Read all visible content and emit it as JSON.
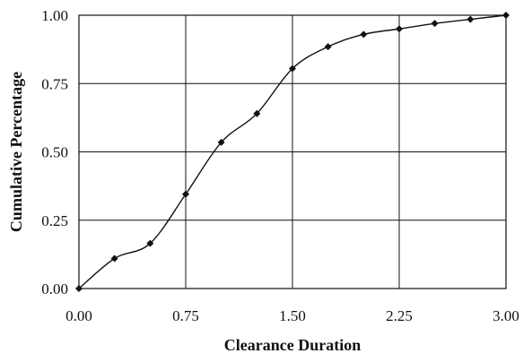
{
  "chart_data": {
    "type": "line",
    "xlabel": "Clearance Duration",
    "ylabel": "Cumulative Percentage",
    "xlim": [
      0,
      3
    ],
    "ylim": [
      0,
      1
    ],
    "x_ticks": [
      "0.00",
      "0.75",
      "1.50",
      "2.25",
      "3.00"
    ],
    "y_ticks": [
      "0.00",
      "0.25",
      "0.50",
      "0.75",
      "1.00"
    ],
    "grid": true,
    "legend": "none",
    "series": [
      {
        "x": [
          0.0,
          0.25,
          0.5,
          0.75,
          1.0,
          1.25,
          1.5,
          1.75,
          2.0,
          2.25,
          2.5,
          2.75,
          3.0
        ],
        "y": [
          0.0,
          0.11,
          0.165,
          0.345,
          0.535,
          0.64,
          0.805,
          0.885,
          0.93,
          0.95,
          0.97,
          0.985,
          1.0
        ]
      }
    ]
  }
}
